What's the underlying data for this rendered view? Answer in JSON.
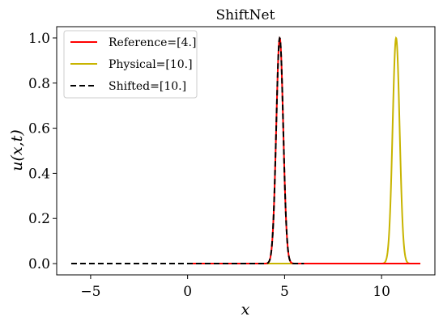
{
  "chart_data": {
    "type": "line",
    "title": "ShiftNet",
    "xlabel": "x",
    "ylabel": "u(x,t)",
    "xlim": [
      -6.75,
      12.75
    ],
    "ylim": [
      -0.05,
      1.05
    ],
    "xticks": [
      -5,
      0,
      5,
      10
    ],
    "xtick_labels": [
      "−5",
      "0",
      "5",
      "10"
    ],
    "yticks": [
      0.0,
      0.2,
      0.4,
      0.6,
      0.8,
      1.0
    ],
    "ytick_labels": [
      "0.0",
      "0.2",
      "0.4",
      "0.6",
      "0.8",
      "1.0"
    ],
    "grid": false,
    "legend_position": "top-left",
    "series": [
      {
        "name": "Reference=[4.]",
        "color": "#ff0000",
        "style": "solid",
        "x_range": [
          0,
          12
        ],
        "peak_center": 4.75,
        "peak_height": 1.0,
        "peak_width": 0.18
      },
      {
        "name": "Physical=[10.]",
        "color": "#c8b400",
        "style": "solid",
        "x_range": [
          0,
          12
        ],
        "peak_center": 10.75,
        "peak_height": 1.0,
        "peak_width": 0.18
      },
      {
        "name": "Shifted=[10.]",
        "color": "#000000",
        "style": "dashed",
        "x_range": [
          -6,
          6
        ],
        "peak_center": 4.75,
        "peak_height": 1.0,
        "peak_width": 0.18
      }
    ]
  }
}
